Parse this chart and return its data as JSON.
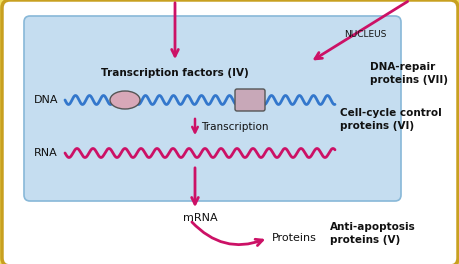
{
  "bg_outer": "#f0e060",
  "bg_cell": "#ffffff",
  "bg_nucleus": "#c5ddf0",
  "nucleus_border": "#88b8d8",
  "outer_border": "#c8a020",
  "dna_color": "#3377cc",
  "rna_color": "#cc1166",
  "arrow_color": "#cc1166",
  "text_color": "#111111",
  "oval_face": "#d8a8b8",
  "oval_edge": "#555555",
  "rect_face": "#c8a8b8",
  "rect_edge": "#555555",
  "text_dna": "DNA",
  "text_rna": "RNA",
  "text_mrna": "mRNA",
  "text_proteins": "Proteins",
  "text_transcription": "Transcription",
  "text_nucleus": "NUCLEUS",
  "text_tf": "Transcription factors (IV)",
  "text_dna_repair": "DNA-repair\nproteins (VII)",
  "text_cell_cycle": "Cell-cycle control\nproteins (VI)",
  "text_anti": "Anti-apoptosis\nproteins (V)",
  "fig_w": 4.6,
  "fig_h": 2.64,
  "dpi": 100
}
